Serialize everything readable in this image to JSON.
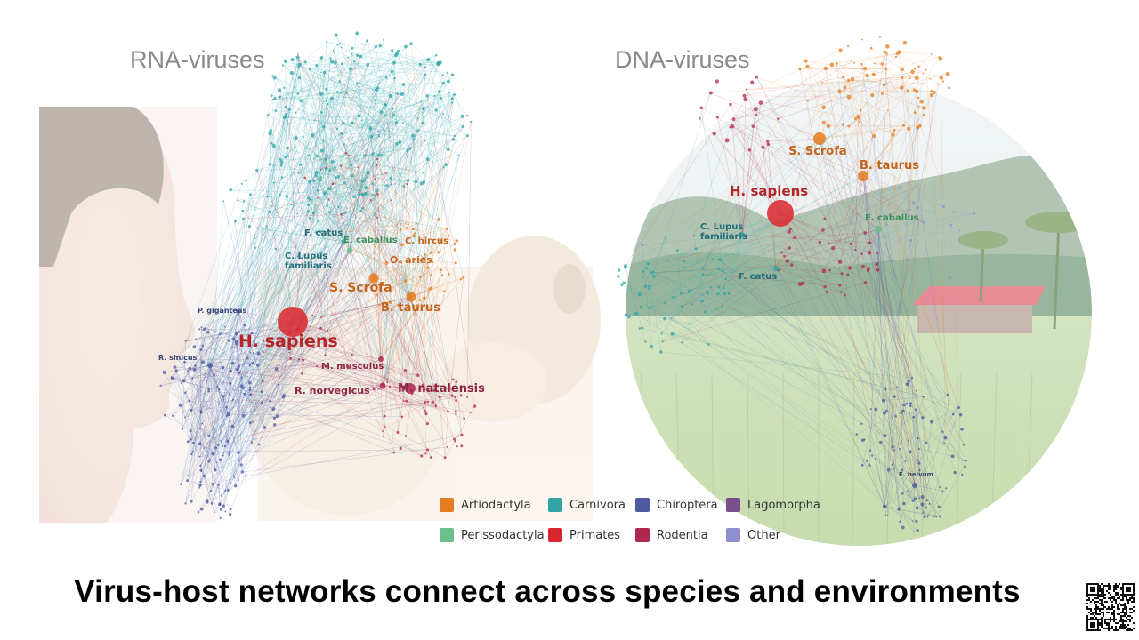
{
  "panels": {
    "rna": {
      "title": "RNA-viruses",
      "labels": {
        "h_sapiens": "H. sapiens",
        "s_scrofa": "S. Scrofa",
        "b_taurus": "B. taurus",
        "o_aries": "O. aries",
        "c_hircus": "C. hircus",
        "e_caballus": "E. caballus",
        "f_catus": "F. catus",
        "c_lupus": "C. Lupus",
        "c_lupus_2": "familiaris",
        "m_musculus": "M. musculus",
        "r_norvegicus": "R. norvegicus",
        "m_natalensis": "M. natalensis",
        "p_giganteus": "P. giganteus",
        "r_sinicus": "R. sinicus"
      }
    },
    "dna": {
      "title": "DNA-viruses",
      "labels": {
        "h_sapiens": "H. sapiens",
        "s_scrofa": "S. Scrofa",
        "b_taurus": "B. taurus",
        "e_caballus": "E. caballus",
        "c_lupus": "C. Lupus",
        "c_lupus_2": "familiaris",
        "f_catus": "F. catus",
        "e_helvum": "E. helvum"
      }
    }
  },
  "legend": [
    {
      "label": "Artiodactyla",
      "color": "#e57c1f"
    },
    {
      "label": "Carnivora",
      "color": "#2fa5a8"
    },
    {
      "label": "Chiroptera",
      "color": "#4d5aa0"
    },
    {
      "label": "Lagomorpha",
      "color": "#7b4f8e"
    },
    {
      "label": "Perissodactyla",
      "color": "#6cc08b"
    },
    {
      "label": "Primates",
      "color": "#d9262c"
    },
    {
      "label": "Rodentia",
      "color": "#b0284f"
    },
    {
      "label": "Other",
      "color": "#8f8fcf"
    }
  ],
  "caption": "Virus-host networks connect across species and environments",
  "icons": {
    "qr": "qr-code-icon"
  }
}
